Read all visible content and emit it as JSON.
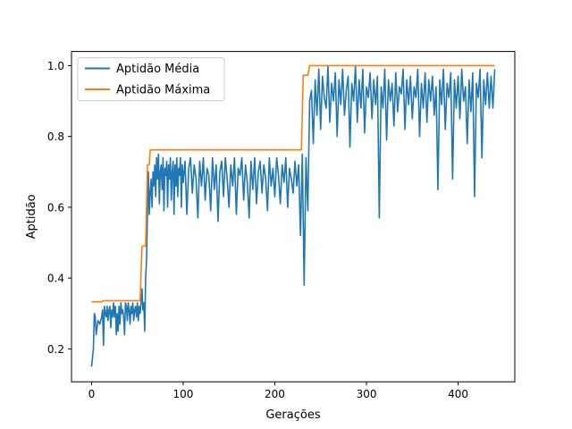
{
  "chart_data": {
    "type": "line",
    "title": "",
    "xlabel": "Gerações",
    "ylabel": "Aptidão",
    "xlim": [
      -21.9,
      461.9
    ],
    "ylim": [
      0.107,
      1.04
    ],
    "xticks": [
      0,
      100,
      200,
      300,
      400
    ],
    "yticks": [
      0.2,
      0.4,
      0.6,
      0.8,
      1.0
    ],
    "xtick_labels": [
      "0",
      "100",
      "200",
      "300",
      "400"
    ],
    "ytick_labels": [
      "0.2",
      "0.4",
      "0.6",
      "0.8",
      "1.0"
    ],
    "grid": false,
    "legend_position": "upper-left",
    "series": [
      {
        "name": "Aptidão Média",
        "color": "#1f77b4",
        "points": [
          [
            0,
            0.15
          ],
          [
            2,
            0.2
          ],
          [
            3,
            0.3
          ],
          [
            4,
            0.29
          ],
          [
            5,
            0.24
          ],
          [
            7,
            0.28
          ],
          [
            9,
            0.27
          ],
          [
            11,
            0.29
          ],
          [
            12,
            0.31
          ],
          [
            13,
            0.21
          ],
          [
            14,
            0.32
          ],
          [
            15,
            0.3
          ],
          [
            16,
            0.29
          ],
          [
            17,
            0.32
          ],
          [
            18,
            0.28
          ],
          [
            19,
            0.31
          ],
          [
            20,
            0.32
          ],
          [
            21,
            0.26
          ],
          [
            22,
            0.31
          ],
          [
            23,
            0.29
          ],
          [
            24,
            0.33
          ],
          [
            25,
            0.29
          ],
          [
            26,
            0.32
          ],
          [
            27,
            0.24
          ],
          [
            28,
            0.3
          ],
          [
            29,
            0.25
          ],
          [
            30,
            0.32
          ],
          [
            31,
            0.27
          ],
          [
            32,
            0.33
          ],
          [
            33,
            0.3
          ],
          [
            34,
            0.31
          ],
          [
            35,
            0.29
          ],
          [
            36,
            0.24
          ],
          [
            37,
            0.33
          ],
          [
            38,
            0.32
          ],
          [
            39,
            0.28
          ],
          [
            40,
            0.33
          ],
          [
            41,
            0.31
          ],
          [
            42,
            0.27
          ],
          [
            43,
            0.32
          ],
          [
            44,
            0.3
          ],
          [
            45,
            0.33
          ],
          [
            46,
            0.28
          ],
          [
            47,
            0.31
          ],
          [
            48,
            0.32
          ],
          [
            49,
            0.29
          ],
          [
            50,
            0.33
          ],
          [
            51,
            0.28
          ],
          [
            52,
            0.32
          ],
          [
            53,
            0.3
          ],
          [
            54,
            0.33
          ],
          [
            55,
            0.37
          ],
          [
            56,
            0.31
          ],
          [
            57,
            0.33
          ],
          [
            58,
            0.25
          ],
          [
            59,
            0.4
          ],
          [
            60,
            0.45
          ],
          [
            61,
            0.58
          ],
          [
            62,
            0.7
          ],
          [
            63,
            0.58
          ],
          [
            64,
            0.64
          ],
          [
            65,
            0.68
          ],
          [
            66,
            0.6
          ],
          [
            67,
            0.7
          ],
          [
            68,
            0.66
          ],
          [
            69,
            0.72
          ],
          [
            70,
            0.63
          ],
          [
            71,
            0.74
          ],
          [
            72,
            0.68
          ],
          [
            73,
            0.75
          ],
          [
            74,
            0.61
          ],
          [
            75,
            0.7
          ],
          [
            76,
            0.72
          ],
          [
            77,
            0.65
          ],
          [
            78,
            0.74
          ],
          [
            79,
            0.59
          ],
          [
            80,
            0.71
          ],
          [
            81,
            0.69
          ],
          [
            82,
            0.73
          ],
          [
            83,
            0.6
          ],
          [
            84,
            0.72
          ],
          [
            85,
            0.68
          ],
          [
            86,
            0.74
          ],
          [
            87,
            0.62
          ],
          [
            88,
            0.7
          ],
          [
            89,
            0.73
          ],
          [
            90,
            0.58
          ],
          [
            91,
            0.72
          ],
          [
            92,
            0.66
          ],
          [
            93,
            0.74
          ],
          [
            94,
            0.63
          ],
          [
            95,
            0.71
          ],
          [
            96,
            0.69
          ],
          [
            97,
            0.74
          ],
          [
            98,
            0.6
          ],
          [
            99,
            0.72
          ],
          [
            100,
            0.67
          ],
          [
            102,
            0.73
          ],
          [
            104,
            0.58
          ],
          [
            106,
            0.71
          ],
          [
            108,
            0.74
          ],
          [
            110,
            0.64
          ],
          [
            112,
            0.72
          ],
          [
            114,
            0.68
          ],
          [
            116,
            0.57
          ],
          [
            118,
            0.73
          ],
          [
            120,
            0.66
          ],
          [
            122,
            0.74
          ],
          [
            124,
            0.62
          ],
          [
            126,
            0.71
          ],
          [
            128,
            0.69
          ],
          [
            130,
            0.59
          ],
          [
            132,
            0.74
          ],
          [
            134,
            0.65
          ],
          [
            136,
            0.72
          ],
          [
            138,
            0.56
          ],
          [
            140,
            0.7
          ],
          [
            142,
            0.73
          ],
          [
            144,
            0.63
          ],
          [
            146,
            0.74
          ],
          [
            148,
            0.68
          ],
          [
            150,
            0.6
          ],
          [
            152,
            0.72
          ],
          [
            154,
            0.66
          ],
          [
            156,
            0.74
          ],
          [
            158,
            0.58
          ],
          [
            160,
            0.71
          ],
          [
            162,
            0.69
          ],
          [
            164,
            0.74
          ],
          [
            166,
            0.62
          ],
          [
            168,
            0.72
          ],
          [
            170,
            0.67
          ],
          [
            172,
            0.57
          ],
          [
            174,
            0.73
          ],
          [
            176,
            0.65
          ],
          [
            178,
            0.74
          ],
          [
            180,
            0.61
          ],
          [
            182,
            0.7
          ],
          [
            184,
            0.73
          ],
          [
            186,
            0.64
          ],
          [
            188,
            0.72
          ],
          [
            190,
            0.68
          ],
          [
            192,
            0.59
          ],
          [
            194,
            0.74
          ],
          [
            196,
            0.66
          ],
          [
            198,
            0.71
          ],
          [
            200,
            0.63
          ],
          [
            202,
            0.74
          ],
          [
            204,
            0.69
          ],
          [
            206,
            0.61
          ],
          [
            208,
            0.72
          ],
          [
            210,
            0.67
          ],
          [
            212,
            0.74
          ],
          [
            214,
            0.6
          ],
          [
            216,
            0.71
          ],
          [
            218,
            0.68
          ],
          [
            220,
            0.64
          ],
          [
            222,
            0.73
          ],
          [
            224,
            0.66
          ],
          [
            226,
            0.72
          ],
          [
            228,
            0.52
          ],
          [
            230,
            0.75
          ],
          [
            232,
            0.38
          ],
          [
            234,
            0.74
          ],
          [
            236,
            0.59
          ],
          [
            238,
            0.9
          ],
          [
            240,
            0.93
          ],
          [
            242,
            0.78
          ],
          [
            244,
            0.96
          ],
          [
            246,
            0.86
          ],
          [
            248,
            0.99
          ],
          [
            250,
            0.82
          ],
          [
            252,
            0.97
          ],
          [
            254,
            0.91
          ],
          [
            256,
            0.88
          ],
          [
            258,
            1.0
          ],
          [
            260,
            0.84
          ],
          [
            262,
            0.95
          ],
          [
            264,
            0.9
          ],
          [
            266,
            0.98
          ],
          [
            268,
            0.8
          ],
          [
            270,
            0.96
          ],
          [
            272,
            0.89
          ],
          [
            274,
            0.99
          ],
          [
            276,
            0.86
          ],
          [
            278,
            0.93
          ],
          [
            280,
            0.97
          ],
          [
            282,
            0.77
          ],
          [
            284,
            0.95
          ],
          [
            286,
            0.9
          ],
          [
            288,
            1.0
          ],
          [
            290,
            0.84
          ],
          [
            292,
            0.96
          ],
          [
            294,
            0.88
          ],
          [
            296,
            0.99
          ],
          [
            298,
            0.81
          ],
          [
            300,
            0.94
          ],
          [
            302,
            0.91
          ],
          [
            304,
            0.98
          ],
          [
            306,
            0.85
          ],
          [
            308,
            0.96
          ],
          [
            310,
            0.89
          ],
          [
            312,
            0.97
          ],
          [
            314,
            0.57
          ],
          [
            316,
            0.94
          ],
          [
            318,
            0.88
          ],
          [
            320,
            0.99
          ],
          [
            322,
            0.79
          ],
          [
            324,
            0.96
          ],
          [
            326,
            0.9
          ],
          [
            328,
            0.95
          ],
          [
            330,
            0.83
          ],
          [
            332,
            0.98
          ],
          [
            334,
            0.87
          ],
          [
            336,
            0.94
          ],
          [
            338,
            0.92
          ],
          [
            340,
            0.99
          ],
          [
            342,
            0.82
          ],
          [
            344,
            0.96
          ],
          [
            346,
            0.89
          ],
          [
            348,
            0.97
          ],
          [
            350,
            0.85
          ],
          [
            352,
            0.94
          ],
          [
            354,
            0.91
          ],
          [
            356,
            0.99
          ],
          [
            358,
            0.8
          ],
          [
            360,
            0.95
          ],
          [
            362,
            0.88
          ],
          [
            364,
            0.98
          ],
          [
            366,
            0.84
          ],
          [
            368,
            0.96
          ],
          [
            370,
            0.9
          ],
          [
            372,
            0.97
          ],
          [
            374,
            0.86
          ],
          [
            376,
            0.94
          ],
          [
            378,
            0.65
          ],
          [
            380,
            0.96
          ],
          [
            382,
            0.89
          ],
          [
            384,
            0.99
          ],
          [
            386,
            0.82
          ],
          [
            388,
            0.95
          ],
          [
            390,
            0.91
          ],
          [
            392,
            0.98
          ],
          [
            394,
            0.68
          ],
          [
            396,
            0.96
          ],
          [
            398,
            0.88
          ],
          [
            400,
            0.97
          ],
          [
            402,
            0.85
          ],
          [
            404,
            0.99
          ],
          [
            406,
            0.9
          ],
          [
            408,
            0.94
          ],
          [
            410,
            0.78
          ],
          [
            412,
            0.96
          ],
          [
            414,
            0.87
          ],
          [
            416,
            0.98
          ],
          [
            418,
            0.63
          ],
          [
            420,
            0.95
          ],
          [
            422,
            0.91
          ],
          [
            424,
            0.99
          ],
          [
            426,
            0.74
          ],
          [
            428,
            0.96
          ],
          [
            430,
            0.89
          ],
          [
            432,
            0.98
          ],
          [
            434,
            0.88
          ],
          [
            436,
            0.97
          ],
          [
            438,
            0.88
          ],
          [
            440,
            0.99
          ]
        ]
      },
      {
        "name": "Aptidão Máxima",
        "color": "#ff7f0e",
        "points": [
          [
            0,
            0.333
          ],
          [
            11,
            0.333
          ],
          [
            13,
            0.336
          ],
          [
            53,
            0.336
          ],
          [
            55,
            0.49
          ],
          [
            59,
            0.49
          ],
          [
            61,
            0.72
          ],
          [
            63,
            0.72
          ],
          [
            64,
            0.762
          ],
          [
            229,
            0.762
          ],
          [
            231,
            0.973
          ],
          [
            236,
            0.973
          ],
          [
            238,
            1.0
          ],
          [
            440,
            1.0
          ]
        ]
      }
    ]
  }
}
